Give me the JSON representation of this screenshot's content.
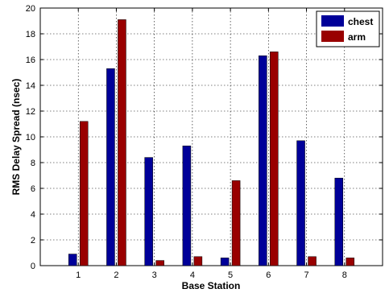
{
  "chart_data": {
    "type": "bar",
    "xlabel": "Base Station",
    "ylabel": "RMS Delay Spread (nsec)",
    "categories": [
      "1",
      "2",
      "3",
      "4",
      "5",
      "6",
      "7",
      "8"
    ],
    "series": [
      {
        "name": "chest",
        "color": "#000099",
        "values": [
          0.9,
          15.3,
          8.4,
          9.3,
          0.6,
          16.3,
          9.7,
          6.8
        ]
      },
      {
        "name": "arm",
        "color": "#990000",
        "values": [
          11.2,
          19.1,
          0.4,
          0.7,
          6.6,
          16.6,
          0.7,
          0.6
        ]
      }
    ],
    "ylim": [
      0,
      20
    ],
    "yticks": [
      0,
      2,
      4,
      6,
      8,
      10,
      12,
      14,
      16,
      18,
      20
    ],
    "grid": true,
    "legend_position": "top-right"
  }
}
